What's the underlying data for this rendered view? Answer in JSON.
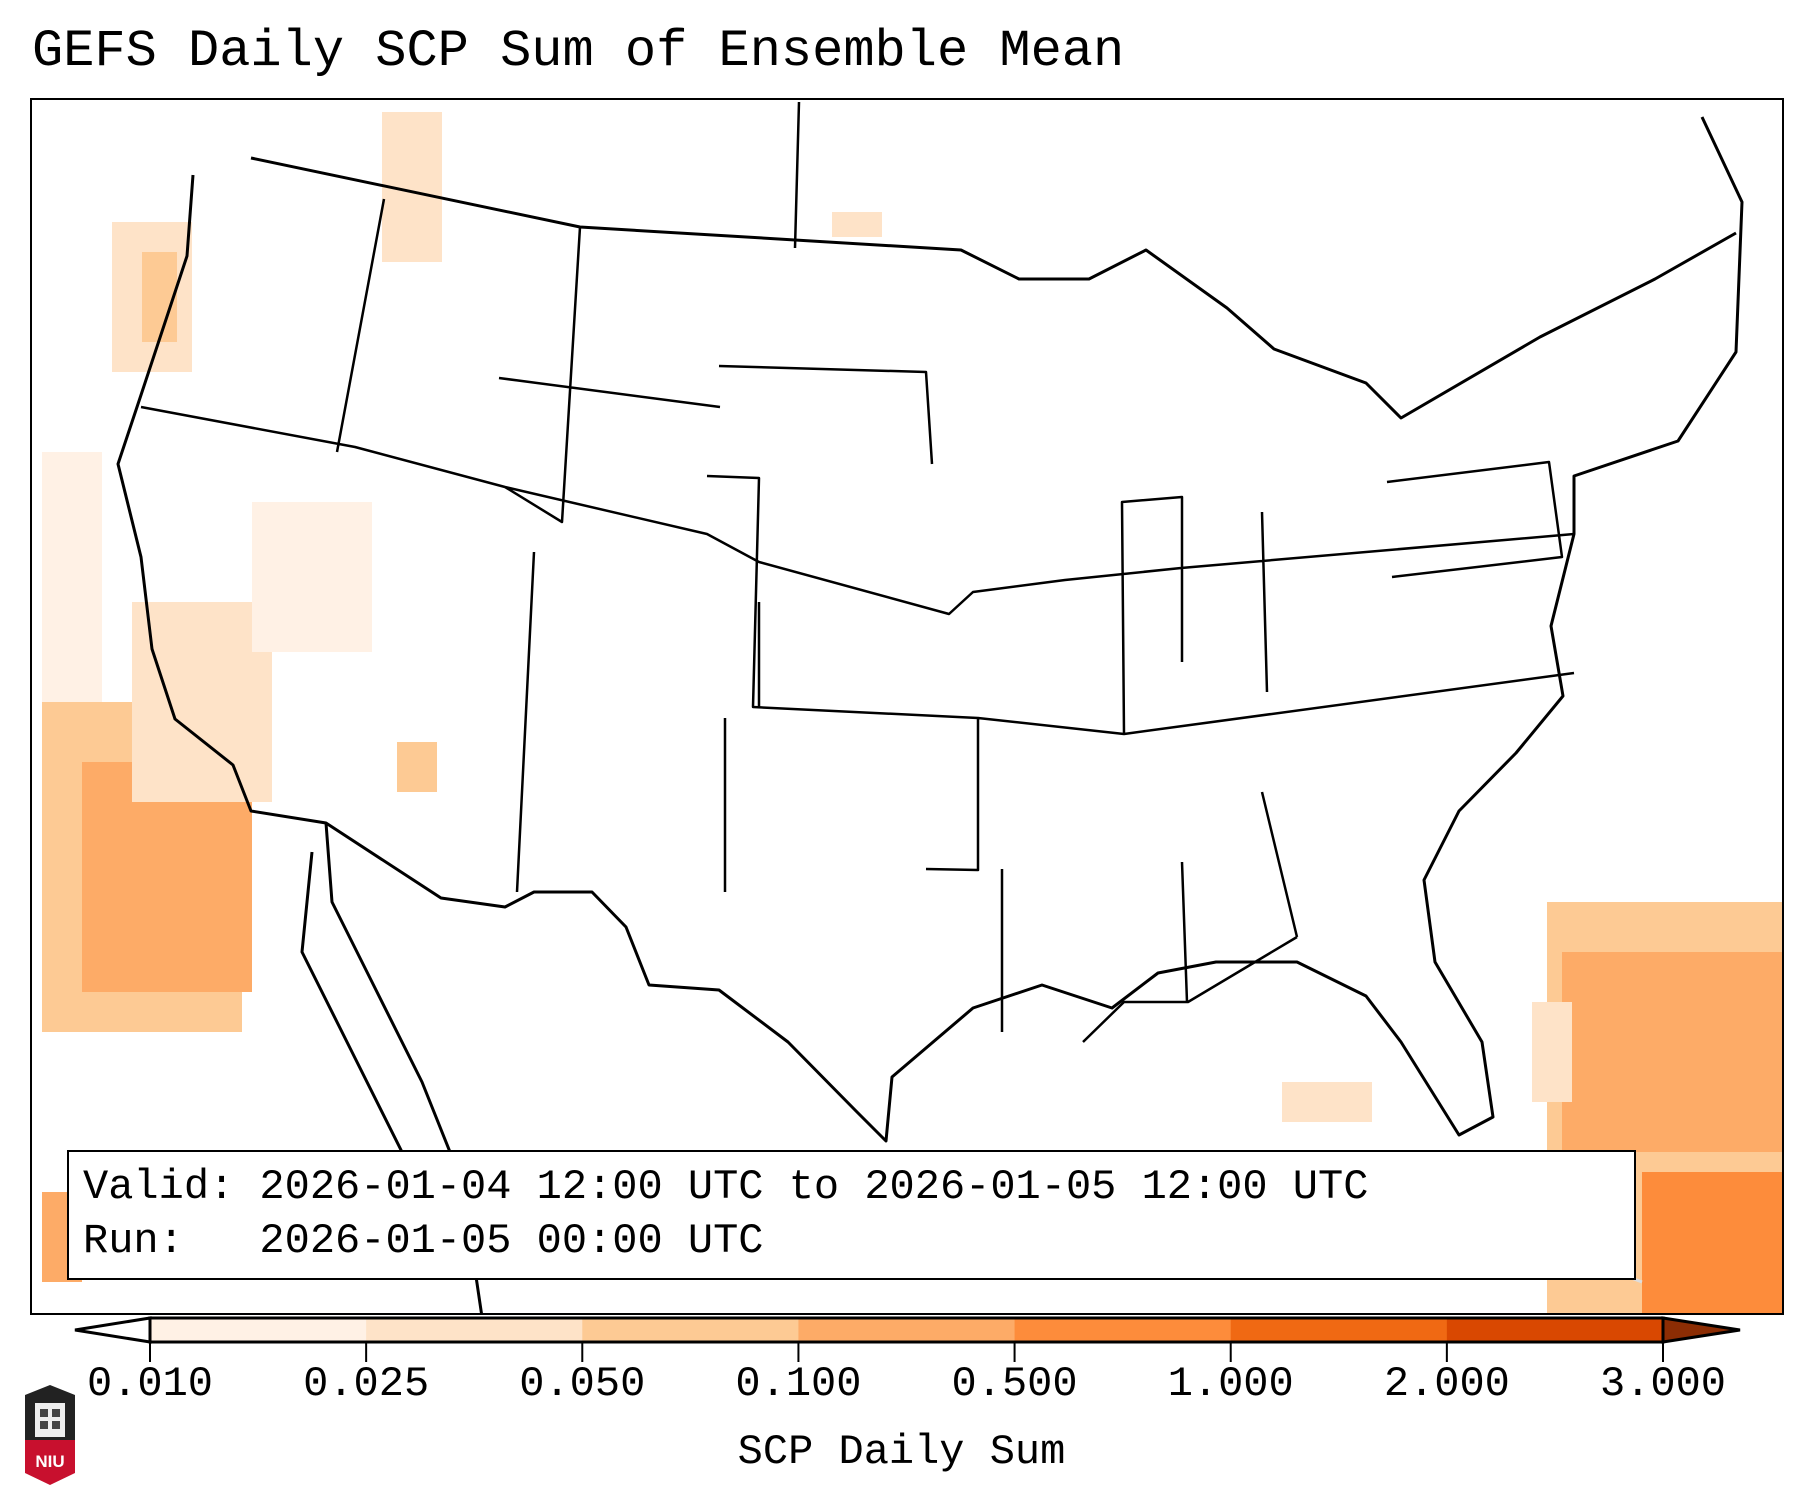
{
  "title": "GEFS Daily SCP Sum of Ensemble Mean",
  "info_box": {
    "valid_line": "Valid: 2026-01-04 12:00 UTC to 2026-01-05 12:00 UTC",
    "run_line": "Run:   2026-01-05 00:00 UTC"
  },
  "colorbar": {
    "label": "SCP Daily Sum",
    "ticks": [
      "0.010",
      "0.025",
      "0.050",
      "0.100",
      "0.500",
      "1.000",
      "2.000",
      "3.000"
    ],
    "colors": [
      "#fff1e5",
      "#fee3c8",
      "#fdca94",
      "#fdab67",
      "#fd8c3b",
      "#f06913",
      "#d94801"
    ],
    "under_color": "#ffffff",
    "over_color": "#8c2d04",
    "extend": "both"
  },
  "logo": {
    "text": "NIU"
  }
}
